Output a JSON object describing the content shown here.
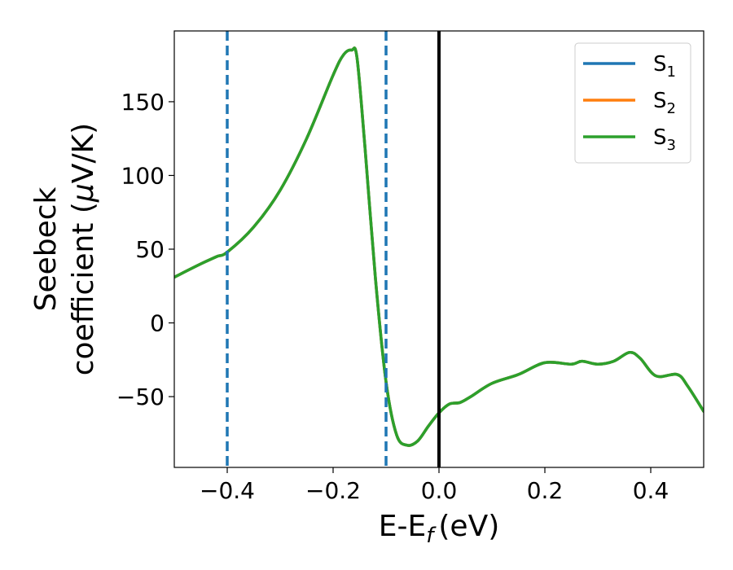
{
  "chart_data": {
    "type": "line",
    "xlabel": "E-E",
    "xlabel_sub": "f",
    "xlabel_unit": "(eV)",
    "ylabel_line1": "Seebeck",
    "ylabel_line2_prefix": "coefficient  (",
    "ylabel_mu": "μ",
    "ylabel_line2_suffix": "V/K)",
    "xlim": [
      -0.5,
      0.5
    ],
    "ylim": [
      -98,
      198
    ],
    "xticks": [
      -0.4,
      -0.2,
      0.0,
      0.2,
      0.4
    ],
    "xtick_labels": [
      "−0.4",
      "−0.2",
      "0.0",
      "0.2",
      "0.4"
    ],
    "yticks": [
      -50,
      0,
      50,
      100,
      150
    ],
    "ytick_labels": [
      "−50",
      "0",
      "50",
      "100",
      "150"
    ],
    "grid": false,
    "legend_position": "top-right",
    "vlines_dashed": [
      -0.4,
      -0.1
    ],
    "vline_dashed_color": "#1f77b4",
    "vline_solid": 0.0,
    "vline_solid_color": "#000000",
    "series": [
      {
        "name": "S",
        "name_sub": "1",
        "color": "#1f77b4",
        "x": [
          -0.5,
          -0.45,
          -0.42,
          -0.4,
          -0.35,
          -0.3,
          -0.25,
          -0.2,
          -0.18,
          -0.165,
          -0.155,
          -0.14,
          -0.12,
          -0.1,
          -0.08,
          -0.06,
          -0.04,
          -0.02,
          0.0,
          0.02,
          0.04,
          0.06,
          0.1,
          0.15,
          0.2,
          0.25,
          0.27,
          0.3,
          0.33,
          0.36,
          0.38,
          0.41,
          0.45,
          0.47,
          0.5
        ],
        "y": [
          31,
          40,
          45,
          48,
          65,
          90,
          125,
          168,
          182,
          185,
          180,
          120,
          30,
          -40,
          -76,
          -83,
          -80,
          -70,
          -61,
          -55,
          -54,
          -50,
          -41,
          -35,
          -27,
          -28,
          -26,
          -28,
          -26,
          -20,
          -24,
          -36,
          -35,
          -43,
          -60
        ]
      },
      {
        "name": "S",
        "name_sub": "2",
        "color": "#ff7f0e",
        "x": [
          -0.5,
          -0.45,
          -0.42,
          -0.4,
          -0.35,
          -0.3,
          -0.25,
          -0.2,
          -0.18,
          -0.165,
          -0.155,
          -0.14,
          -0.12,
          -0.1,
          -0.08,
          -0.06,
          -0.04,
          -0.02,
          0.0,
          0.02,
          0.04,
          0.06,
          0.1,
          0.15,
          0.2,
          0.25,
          0.27,
          0.3,
          0.33,
          0.36,
          0.38,
          0.41,
          0.45,
          0.47,
          0.5
        ],
        "y": [
          31,
          40,
          45,
          48,
          65,
          90,
          125,
          168,
          182,
          185,
          180,
          120,
          30,
          -40,
          -76,
          -83,
          -80,
          -70,
          -61,
          -55,
          -54,
          -50,
          -41,
          -35,
          -27,
          -28,
          -26,
          -28,
          -26,
          -20,
          -24,
          -36,
          -35,
          -43,
          -60
        ]
      },
      {
        "name": "S",
        "name_sub": "3",
        "color": "#2ca02c",
        "x": [
          -0.5,
          -0.45,
          -0.42,
          -0.4,
          -0.35,
          -0.3,
          -0.25,
          -0.2,
          -0.18,
          -0.165,
          -0.155,
          -0.14,
          -0.12,
          -0.1,
          -0.08,
          -0.06,
          -0.04,
          -0.02,
          0.0,
          0.02,
          0.04,
          0.06,
          0.1,
          0.15,
          0.2,
          0.25,
          0.27,
          0.3,
          0.33,
          0.36,
          0.38,
          0.41,
          0.45,
          0.47,
          0.5
        ],
        "y": [
          31,
          40,
          45,
          48,
          65,
          90,
          125,
          168,
          182,
          185,
          180,
          120,
          30,
          -40,
          -76,
          -83,
          -80,
          -70,
          -61,
          -55,
          -54,
          -50,
          -41,
          -35,
          -27,
          -28,
          -26,
          -28,
          -26,
          -20,
          -24,
          -36,
          -35,
          -43,
          -60
        ]
      }
    ]
  }
}
